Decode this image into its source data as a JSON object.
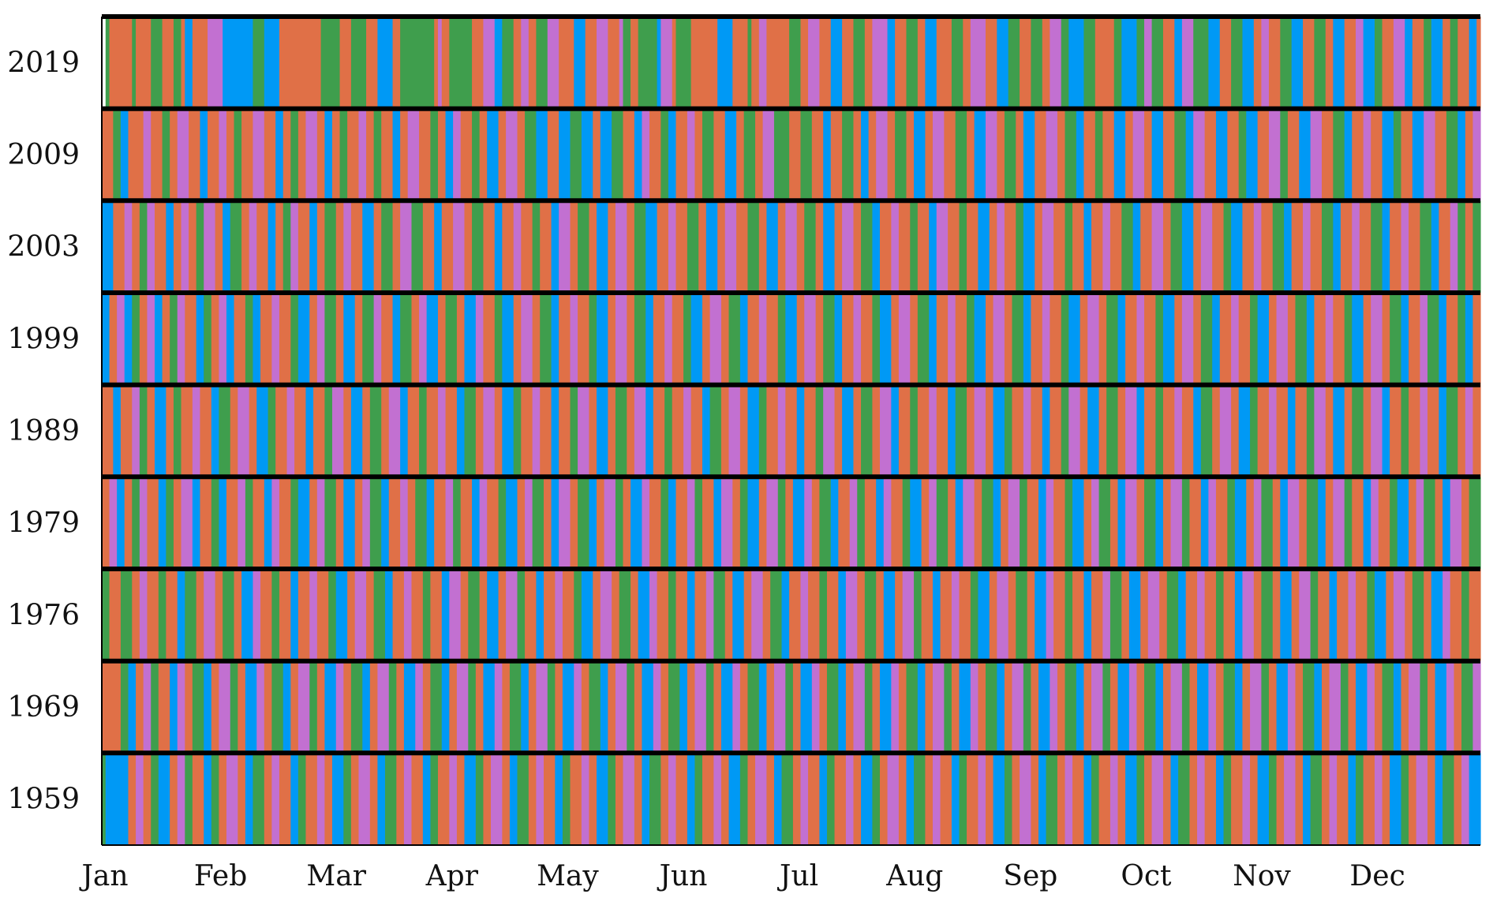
{
  "chart_data": {
    "type": "heatmap",
    "title": "",
    "xlabel": "",
    "ylabel": "",
    "x_ticks": [
      "Jan",
      "Feb",
      "Mar",
      "Apr",
      "May",
      "Jun",
      "Jul",
      "Aug",
      "Sep",
      "Oct",
      "Nov",
      "Dec"
    ],
    "rows": [
      "2019",
      "2009",
      "2003",
      "1999",
      "1989",
      "1979",
      "1976",
      "1969",
      "1959"
    ],
    "days_per_row": 365,
    "category_colors": {
      "A": "#e07047",
      "B": "#3f9e4d",
      "C": "#0099f5",
      "D": "#c270d1"
    },
    "grid": false,
    "legend": "none",
    "segments": {
      "2019": "AB:1 A:2 B:8 A:9 B:13 A:16 B:19 A:21 C:22 A:24 D:28 C:32 B:40 C:43 A:47 B:58 A:63 B:66 A:70 C:73 A:77 B:79 A:88 D:89 A:90 B:92 A:98 D:101 C:104 B:106 A:109 D:111 A:113 B:115 D:118 A:121 C:125 A:128 D:131 A:134 D:137 B:138 A:140 B:142 C:147 D:148 A:151 B:152 A:156 C:163 A:167 B:171 A:172 D:174 A:176 B:182 A:185 D:187 A:190 C:193 A:196 B:199 A:202 D:204 C:208 A:210 B:213 A:216 C:218 A:221 B:225 A:228 D:230 A:234 C:237 B:240 A:243 B:246 A:249 D:251 B:254 C:256 B:260 A:263 B:268 C:270 B:274 D:276 B:278 A:281 C:284 D:286 B:289 C:293 A:296 B:299 C:302 A:305 D:307 A:309 B:312 C:315 A:318 B:321 A:324 C:326 A:329 D:332 C:334 B:337 A:339 D:342 C:345 A:347 B:350 C:352 A:355 B:357 A:359 C:362 A:364",
      "2009": "A:0 B:3 C:5 A:7 D:11 A:13 B:16 A:18 D:20 A:23 C:26 A:28 D:31 A:33 B:35 A:37 D:40 A:43 C:46 A:48 B:50 A:52 D:54 A:57 C:59 A:61 B:63 A:65 D:68 A:70 B:72 A:74 C:77 A:79 D:81 A:84 B:87 A:89 C:91 D:93 A:95 B:98 A:100 C:102 A:105 D:107 A:110 B:112 C:115 A:118 C:121 B:124 C:127 A:130 C:132 B:135 A:138 C:141 D:143 A:145 B:148 C:150 A:152 D:155 A:157 B:159 A:162 C:165 A:168 B:170 A:173 D:175 B:178 A:182 B:185 A:188 C:191 A:193 B:196 A:199 C:201 A:203 D:205 A:208 B:210 A:213 C:215 A:218 D:220 A:223 B:226 A:229 C:231 D:234 A:237 B:239 A:242 C:244 A:247 D:250 A:253 B:255 C:258 A:260 B:263 A:265 C:268 A:271 D:273 A:276 C:278 A:281 B:284 C:287 D:289 A:292 C:295 A:298 B:301 C:303 A:306 D:309 B:312 A:314 C:317 D:320 A:323 B:326 C:329 A:331 D:334 A:336 C:339 B:342 A:344 C:347 D:350 A:353 B:356 C:359 A:361 D:363",
      "2003": "C:0 A:3 D:6 A:8 B:10 D:12 A:14 C:17 A:19 D:21 A:23 B:25 D:27 A:30 C:32 B:34 A:37 D:39 A:41 C:44 A:46 B:48 D:50 A:52 C:55 A:57 B:59 A:62 D:64 A:66 C:69 A:72 B:74 A:77 D:79 B:82 A:85 C:88 A:90 D:93 A:96 B:98 A:101 C:104 A:106 D:109 A:111 B:114 A:116 C:119 D:121 A:124 B:126 A:129 C:131 A:134 D:136 A:139 B:141 C:144 A:147 D:150 A:152 B:155 A:158 C:160 A:163 D:165 A:168 B:171 A:174 C:176 A:179 D:181 A:184 B:186 A:189 C:191 A:194 D:196 A:199 B:201 C:204 A:206 D:209 A:211 B:214 A:216 C:219 D:221 A:224 B:227 A:229 C:232 A:235 D:237 A:239 B:242 C:244 A:247 D:249 A:252 B:255 A:257 C:260 A:262 D:265 A:267 B:270 C:273 A:275 D:278 A:281 B:283 C:286 A:289 D:291 A:294 B:297 C:299 A:302 D:305 A:307 B:310 C:313 A:315 D:318 A:320 B:323 C:326 A:328 D:331 A:333 B:336 C:339 A:341 D:344 A:346 B:349 C:352 A:354 D:357 B:359 A:361 B:363",
      "1999": "C:0 A:2 D:4 C:6 B:8 A:10 D:12 C:14 A:16 B:18 D:20 A:22 C:25 B:27 A:29 D:31 C:33 A:35 B:38 C:40 A:42 D:45 A:47 B:50 C:52 A:55 D:57 B:59 A:62 C:64 A:67 B:69 D:72 A:74 C:77 B:79 A:82 D:84 C:86 A:89 B:91 A:94 C:96 D:99 A:101 B:104 C:106 A:109 D:111 A:114 B:116 C:119 A:121 D:124 A:126 B:129 C:131 A:134 D:136 A:139 B:141 C:144 A:146 D:149 A:151 B:154 C:156 A:159 D:161 A:164 B:166 C:169 A:171 D:174 A:176 B:179 C:181 A:184 D:186 A:189 B:191 C:194 A:196 D:199 A:201 B:204 C:206 A:209 D:211 A:214 B:216 C:219 A:221 D:224 A:226 B:229 C:231 A:234 D:236 A:239 B:241 C:244 A:246 D:249 A:251 B:254 C:256 A:259 D:261 A:264 B:266 C:269 A:271 D:274 A:276 B:279 C:281 A:284 D:286 A:289 B:291 C:294 A:296 D:299 A:301 B:304 C:306 A:309 D:311 A:314 B:316 C:319 A:321 D:324 A:326 B:329 C:331 A:334 D:336 A:339 B:341 C:344 A:346 D:349 B:351 C:354 A:356 B:359 C:361 A:363",
      "1989": "A:0 C:3 A:5 D:8 B:10 A:12 C:14 A:17 B:19 A:21 D:24 A:26 C:29 B:31 A:34 D:36 A:39 C:41 B:44 A:46 D:49 A:51 C:54 A:56 B:59 D:61 A:64 C:66 A:69 B:71 A:74 D:76 C:79 A:81 B:84 A:86 D:89 A:91 C:94 B:96 A:99 D:101 A:104 C:106 B:109 A:111 D:114 A:116 C:119 A:121 B:124 D:126 A:129 C:131 A:134 B:136 A:139 D:141 C:144 A:146 B:149 A:151 D:154 A:156 C:159 B:161 A:164 D:166 A:169 C:171 B:174 A:176 D:179 A:181 C:184 A:186 B:189 D:191 A:194 C:196 A:199 B:201 A:204 D:206 C:209 A:211 B:214 A:216 D:219 A:221 C:224 B:226 A:229 D:231 A:234 C:236 B:239 A:241 D:244 A:246 C:249 A:251 B:254 D:256 A:259 C:261 A:264 B:266 A:269 D:271 C:274 A:276 B:279 A:281 D:284 A:286 C:289 B:291 A:294 D:296 A:299 C:301 B:304 A:306 D:309 A:311 C:314 A:316 B:319 D:321 A:324 C:326 A:329 B:331 A:334 D:336 C:339 A:341 B:344 A:346 D:349 A:351 C:354 B:356 A:359 D:361 A:363",
      "1979": "A:0 D:2 C:4 A:6 B:8 D:10 A:12 C:15 B:17 A:19 D:21 C:24 A:26 B:29 C:31 A:33 D:36 B:38 A:40 C:43 D:45 A:47 B:50 C:52 A:55 D:57 B:59 A:62 C:64 A:67 D:69 B:71 C:74 A:76 D:79 A:81 B:83 C:86 A:88 D:91 B:93 A:95 C:98 D:100 A:102 B:105 C:107 A:110 D:112 B:114 A:117 C:119 D:121 A:124 B:126 C:129 A:131 D:133 B:136 A:138 C:140 D:143 A:145 B:148 C:150 A:152 D:155 B:157 A:159 C:162 D:164 A:167 B:169 C:171 A:174 D:176 B:179 A:181 C:183 D:186 A:188 B:190 C:193 A:195 D:198 B:200 A:202 C:205 D:207 A:209 B:212 C:214 A:217 D:219 B:221 A:224 C:226 D:228 A:231 B:233 C:236 A:238 D:240 B:243 A:245 C:248 D:250 A:252 B:255 C:257 A:260 D:262 B:264 A:267 C:269 D:271 A:274 B:276 C:279 A:281 D:283 B:286 A:288 C:291 D:293 A:295 B:298 C:300 A:303 D:305 B:307 A:310 C:312 D:314 A:317 B:319 C:322 A:324 D:326 B:329 A:331 C:334 D:336 A:338 B:341 C:343 A:346 D:348 B:350 A:353 C:355 D:357 A:360 B:362",
      "1976": "B:0 A:2 B:5 A:8 D:10 A:12 B:15 A:17 C:20 B:22 A:25 D:27 A:30 B:32 A:35 C:37 D:40 A:42 B:45 A:47 C:50 A:52 D:55 A:57 B:60 C:62 A:65 D:67 A:70 B:72 C:75 A:77 D:80 A:82 B:85 A:87 C:90 D:92 A:95 B:97 A:100 C:102 A:105 D:107 B:110 A:112 C:115 A:117 D:120 A:122 B:125 C:127 A:130 D:132 A:135 B:137 A:140 C:142 D:145 A:147 B:150 A:152 C:155 A:157 D:160 B:162 A:165 C:167 A:170 D:172 A:175 B:177 C:180 A:182 D:185 A:187 B:190 A:192 C:195 D:197 A:200 B:202 A:205 C:207 A:210 D:212 B:215 A:217 C:220 A:222 D:225 A:227 B:230 C:232 A:235 D:237 A:240 B:242 A:245 C:247 D:250 A:252 B:255 A:257 C:260 A:262 D:265 B:267 A:270 C:272 A:275 D:277 A:280 B:282 C:285 A:287 D:290 A:292 B:295 A:297 C:300 D:302 A:305 B:307 A:310 C:312 A:315 D:317 B:320 A:322 C:325 A:327 D:330 A:332 B:335 C:337 A:340 D:342 A:345 B:347 A:350 C:352 D:355 A:357 B:360 A:362",
      "1969": "A:0 B:5 C:7 A:9 D:11 B:13 A:15 C:18 D:20 A:22 B:24 C:27 A:29 D:31 B:34 A:36 C:38 D:41 A:43 B:45 C:48 A:50 D:52 B:55 A:57 C:59 D:62 A:64 B:66 C:69 A:71 D:73 B:76 A:78 C:80 D:83 A:85 B:87 C:90 A:92 D:94 B:97 A:99 C:101 D:104 A:106 B:108 C:111 A:113 D:115 B:118 A:120 C:122 D:125 A:127 B:129 C:132 A:134 D:136 B:139 A:141 C:143 D:146 A:148 B:150 C:153 A:155 D:157 B:160 A:162 C:164 D:167 A:169 B:171 C:174 A:176 D:178 B:181 A:183 C:185 D:188 A:190 B:192 C:195 A:197 D:199 B:202 A:204 C:206 D:209 A:211 B:213 C:216 A:218 D:220 B:223 A:225 C:227 D:230 A:232 B:234 C:237 A:239 D:241 B:244 A:246 C:248 D:251 A:253 B:255 C:258 A:260 D:262 B:265 A:267 C:269 D:272 A:274 B:276 C:279 A:281 D:283 B:286 A:288 C:290 D:293 A:295 B:297 C:300 A:302 D:304 B:307 A:309 C:311 D:314 A:316 B:318 C:321 A:323 D:325 B:328 A:330 C:332 D:335 A:337 B:339 C:342 A:344 D:346 B:349 A:351 C:353 D:356 A:358 B:360 D:363",
      "1959": "B:0 C:1 A:7 D:9 A:11 B:13 C:15 A:18 D:20 B:22 A:24 C:27 B:29 A:31 D:33 A:36 C:38 B:40 A:43 D:45 A:47 C:50 B:52 A:54 D:57 A:59 C:61 B:64 A:66 D:68 A:71 C:73 B:75 A:78 D:80 A:82 C:85 B:87 A:89 D:92 A:94 C:96 B:99 A:101 D:103 A:106 C:108 B:110 A:113 D:115 A:117 C:120 B:122 A:124 D:127 A:129 C:131 B:134 A:136 D:138 A:141 C:143 B:145 A:148 D:150 A:152 C:155 B:157 A:159 D:162 A:164 C:166 B:169 A:171 D:173 A:176 C:178 B:180 A:183 D:185 A:187 C:190 B:192 A:194 D:197 A:199 C:201 B:204 A:206 D:208 A:211 C:213 B:215 A:218 D:220 A:222 C:225 B:227 A:229 D:232 A:234 C:236 B:239 A:241 D:243 A:246 C:248 B:250 A:253 D:255 A:257 C:260 B:262 A:264 D:267 A:269 C:271 B:274 A:276 D:278 A:281 C:283 B:285 A:288 D:290 A:292 C:295 B:297 A:299 D:302 A:304 C:306 B:309 A:311 D:313 A:316 C:318 B:320 A:323 D:325 A:327 C:330 B:332 A:334 D:337 A:339 C:341 B:344 A:346 D:348 A:351 C:353 B:355 A:358 D:360 C:362"
    }
  }
}
